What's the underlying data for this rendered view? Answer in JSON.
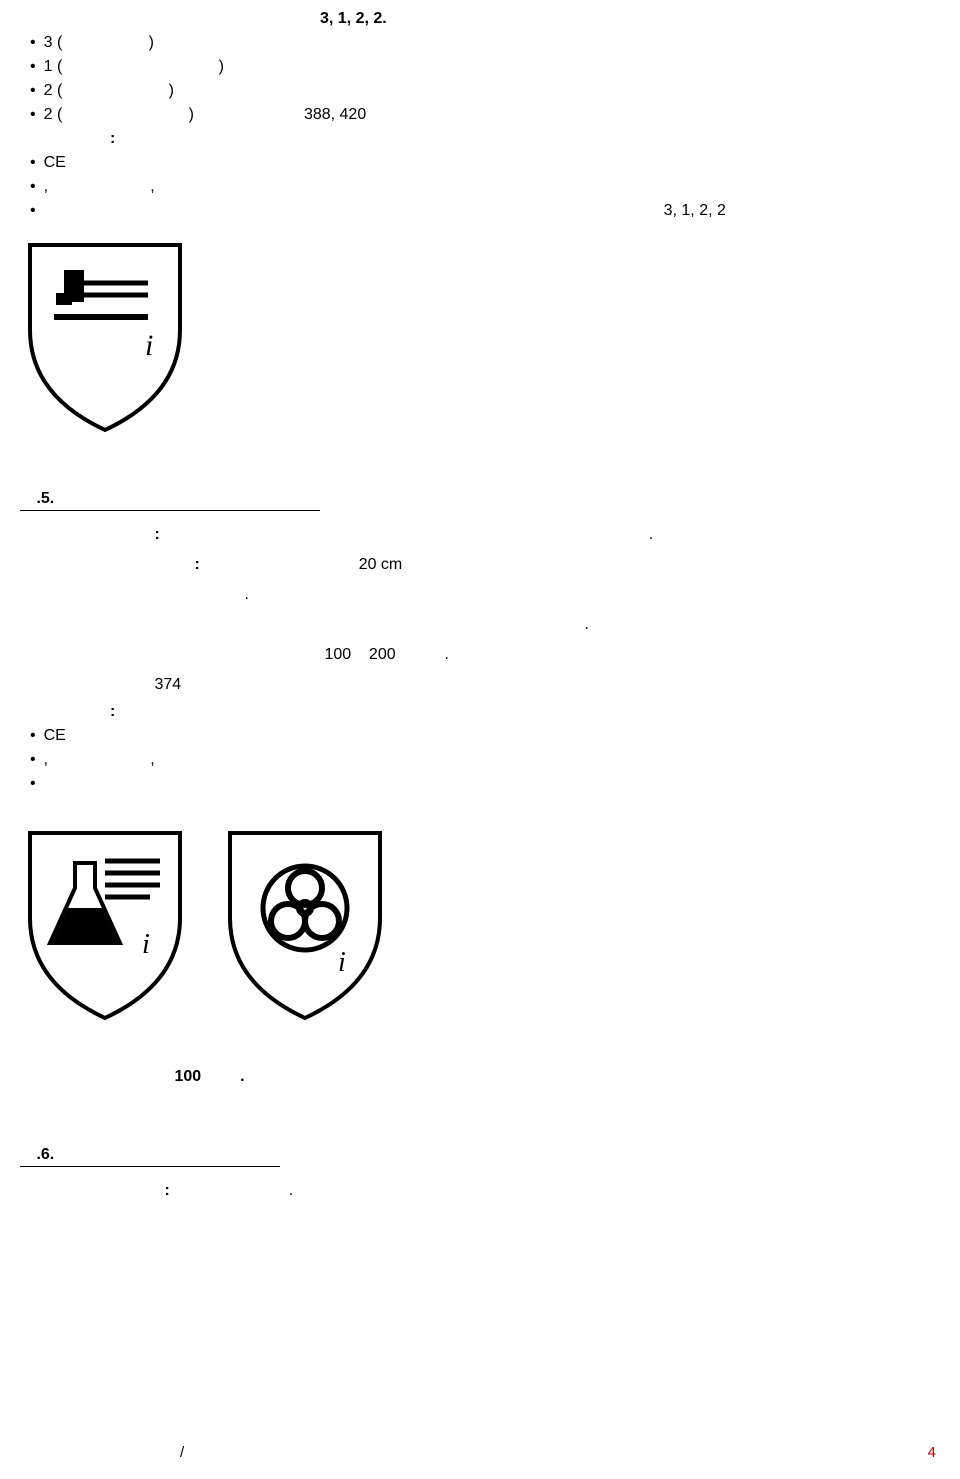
{
  "top_center": "3, 1, 2, 2.",
  "bullets_top": [
    {
      "lead": "3 (",
      "gap1_w": 60,
      "close": ")",
      "aft_w": 0,
      "text": ""
    },
    {
      "lead": "1 (",
      "gap1_w": 130,
      "close": ")",
      "aft_w": 0,
      "text": ""
    },
    {
      "lead": "2 (",
      "gap1_w": 80,
      "close": ")",
      "aft_w": 0,
      "text": ""
    },
    {
      "lead": "2 (",
      "gap1_w": 100,
      "close": ")",
      "aft_w": 110,
      "text": "388, 420"
    }
  ],
  "labels": {
    "marking": ":",
    "ce": "CE",
    "comma_line": ",                       ,",
    "codes_right": "3, 1, 2, 2"
  },
  "section5": {
    "num": ".5.",
    "underline_w": 300,
    "row1_label": ":",
    "row1_label_pad": 130,
    "row1_text": ".",
    "row1_text_pad": 480,
    "row2_label": ":",
    "row2_label_pad": 170,
    "row2_text_a": "20 cm",
    "row2_text_a_pad": 150,
    "row3_dot": ".",
    "row3_pad": 220,
    "row4_dot": ".",
    "row4_pad": 560,
    "row5_text": "100    200",
    "row5_pad": 300,
    "row5_dot": ".",
    "row6_text": "374",
    "row6_pad": 130,
    "marking": ":",
    "ce": "CE",
    "comma_line": ",                       ,"
  },
  "qty": {
    "val": "100",
    "dot": "."
  },
  "section6": {
    "num": ".6.",
    "underline_w": 260,
    "row1_label": ":",
    "row1_label_pad": 140,
    "row1_dot": ".",
    "row1_dot_pad": 110
  },
  "footer_slash": "/",
  "page_num": "4",
  "colors": {
    "text": "#000000",
    "page_num": "#c00000",
    "bg": "#ffffff"
  }
}
